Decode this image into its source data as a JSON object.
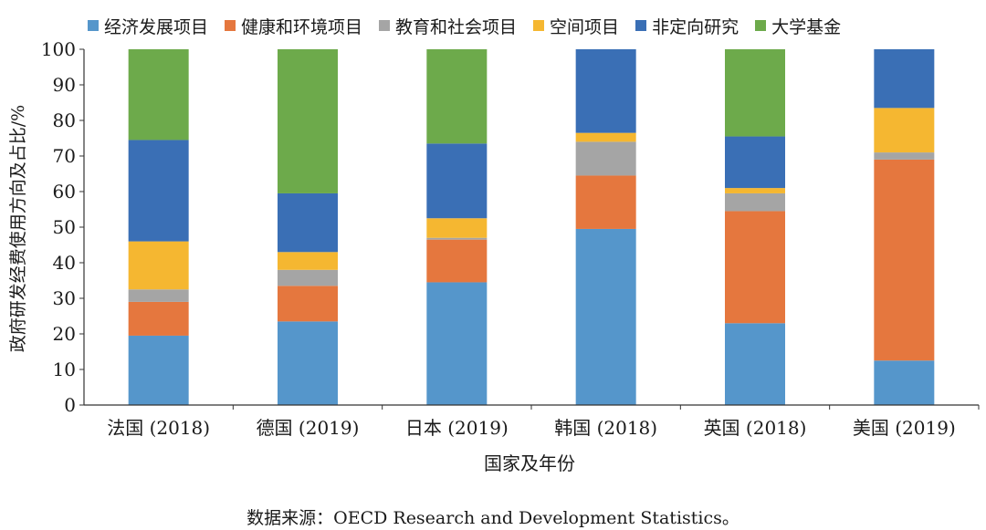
{
  "chart_data": {
    "type": "bar",
    "stacked": true,
    "categories": [
      "法国 (2018)",
      "德国 (2019)",
      "日本 (2019)",
      "韩国 (2018)",
      "英国 (2018)",
      "美国 (2019)"
    ],
    "series": [
      {
        "name": "经济发展项目",
        "color": "#5596cb",
        "values": [
          19.5,
          23.5,
          34.5,
          49.5,
          23,
          12.5
        ]
      },
      {
        "name": "健康和环境项目",
        "color": "#e5773e",
        "values": [
          9.5,
          10,
          12,
          15,
          31.5,
          56.5
        ]
      },
      {
        "name": "教育和社会项目",
        "color": "#a5a5a5",
        "values": [
          3.5,
          4.5,
          0.5,
          9.5,
          5,
          2
        ]
      },
      {
        "name": "空间项目",
        "color": "#f5b731",
        "values": [
          13.5,
          5,
          5.5,
          2.5,
          1.5,
          12.5
        ]
      },
      {
        "name": "非定向研究",
        "color": "#3a6fb5",
        "values": [
          28.5,
          16.5,
          21,
          23.5,
          14.5,
          16.5
        ]
      },
      {
        "name": "大学基金",
        "color": "#6daa4b",
        "values": [
          25.5,
          40.5,
          26.5,
          0,
          24.5,
          0
        ]
      }
    ],
    "ylim": [
      0,
      100
    ],
    "yticks": [
      "0",
      "10",
      "20",
      "30",
      "40",
      "50",
      "60",
      "70",
      "80",
      "90",
      "100"
    ],
    "ytick_values": [
      0,
      10,
      20,
      30,
      40,
      50,
      60,
      70,
      80,
      90,
      100
    ],
    "ylabel": "政府研发经费使用方向及占比/%",
    "xlabel": "国家及年份",
    "legend_position": "top",
    "grid": false
  },
  "source_text": "数据来源：OECD Research and Development Statistics。"
}
